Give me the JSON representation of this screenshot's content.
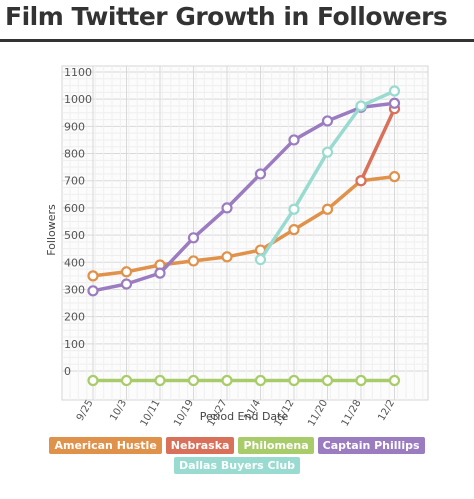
{
  "chart_data": {
    "type": "line",
    "title": "Film Twitter Growth in Followers",
    "xlabel": "Period End Date",
    "ylabel": "Followers",
    "categories": [
      "9/25",
      "10/3",
      "10/11",
      "10/19",
      "10/27",
      "11/4",
      "11/12",
      "11/20",
      "11/28",
      "12/2"
    ],
    "y_ticks": [
      0,
      100,
      200,
      300,
      400,
      500,
      600,
      700,
      800,
      900,
      1000,
      1100
    ],
    "ylim": [
      0,
      1100
    ],
    "grid": true,
    "legend_position": "bottom",
    "series": [
      {
        "name": "American Hustle",
        "color": "#e0914a",
        "values": [
          350,
          365,
          390,
          405,
          420,
          445,
          520,
          595,
          700,
          715
        ]
      },
      {
        "name": "Nebraska",
        "color": "#d9705a",
        "values": [
          null,
          null,
          null,
          null,
          null,
          null,
          null,
          null,
          700,
          965
        ]
      },
      {
        "name": "Philomena",
        "color": "#a9cc6b",
        "values": [
          -35,
          -35,
          -35,
          -35,
          -35,
          -35,
          -35,
          -35,
          -35,
          -35
        ]
      },
      {
        "name": "Captain Phillips",
        "color": "#9b7cc0",
        "values": [
          295,
          320,
          360,
          490,
          600,
          725,
          850,
          920,
          970,
          985
        ]
      },
      {
        "name": "Dallas Buyers Club",
        "color": "#99dbd0",
        "values": [
          null,
          null,
          null,
          null,
          null,
          410,
          595,
          805,
          975,
          1030
        ]
      }
    ]
  }
}
